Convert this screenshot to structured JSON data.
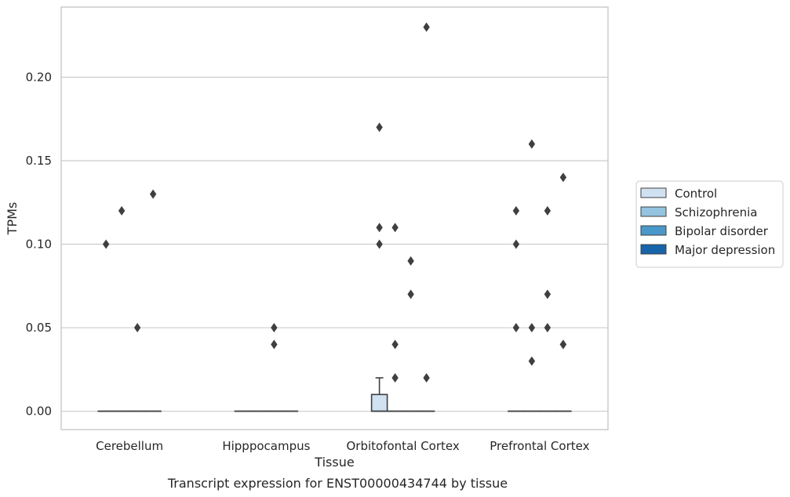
{
  "chart_data": {
    "type": "box",
    "xlabel": "Tissue",
    "ylabel": "TPMs",
    "caption": "Transcript expression for ENST00000434744 by tissue",
    "ylim": [
      -0.011,
      0.242
    ],
    "yticks": [
      0.0,
      0.05,
      0.1,
      0.15,
      0.2
    ],
    "ytick_labels": [
      "0.00",
      "0.05",
      "0.10",
      "0.15",
      "0.20"
    ],
    "grid": "horizontal",
    "legend_position": "right",
    "categories": [
      "Cerebellum",
      "Hipppocampus",
      "Orbitofontal Cortex",
      "Prefrontal Cortex"
    ],
    "series": [
      {
        "name": "Control",
        "color": "#d0e1f2",
        "boxes": [
          {
            "q1": 0,
            "median": 0,
            "q3": 0,
            "whislo": 0,
            "whishi": 0,
            "fliers": [
              0.1
            ]
          },
          {
            "q1": 0,
            "median": 0,
            "q3": 0,
            "whislo": 0,
            "whishi": 0,
            "fliers": []
          },
          {
            "q1": 0,
            "median": 0,
            "q3": 0.01,
            "whislo": 0,
            "whishi": 0.02,
            "fliers": [
              0.1,
              0.11,
              0.17
            ]
          },
          {
            "q1": 0,
            "median": 0,
            "q3": 0,
            "whislo": 0,
            "whishi": 0,
            "fliers": [
              0.05,
              0.1,
              0.12
            ]
          }
        ]
      },
      {
        "name": "Schizophrenia",
        "color": "#94c4df",
        "boxes": [
          {
            "q1": 0,
            "median": 0,
            "q3": 0,
            "whislo": 0,
            "whishi": 0,
            "fliers": [
              0.12
            ]
          },
          {
            "q1": 0,
            "median": 0,
            "q3": 0,
            "whislo": 0,
            "whishi": 0,
            "fliers": []
          },
          {
            "q1": 0,
            "median": 0,
            "q3": 0,
            "whislo": 0,
            "whishi": 0,
            "fliers": [
              0.04,
              0.02,
              0.11
            ]
          },
          {
            "q1": 0,
            "median": 0,
            "q3": 0,
            "whislo": 0,
            "whishi": 0,
            "fliers": [
              0.03,
              0.05,
              0.16
            ]
          }
        ]
      },
      {
        "name": "Bipolar disorder",
        "color": "#4a98c9",
        "boxes": [
          {
            "q1": 0,
            "median": 0,
            "q3": 0,
            "whislo": 0,
            "whishi": 0,
            "fliers": [
              0.05
            ]
          },
          {
            "q1": 0,
            "median": 0,
            "q3": 0,
            "whislo": 0,
            "whishi": 0,
            "fliers": [
              0.04,
              0.05
            ]
          },
          {
            "q1": 0,
            "median": 0,
            "q3": 0,
            "whislo": 0,
            "whishi": 0,
            "fliers": [
              0.07,
              0.09
            ]
          },
          {
            "q1": 0,
            "median": 0,
            "q3": 0,
            "whislo": 0,
            "whishi": 0,
            "fliers": [
              0.05,
              0.07,
              0.12
            ]
          }
        ]
      },
      {
        "name": "Major depression",
        "color": "#1764ab",
        "boxes": [
          {
            "q1": 0,
            "median": 0,
            "q3": 0,
            "whislo": 0,
            "whishi": 0,
            "fliers": [
              0.13
            ]
          },
          {
            "q1": 0,
            "median": 0,
            "q3": 0,
            "whislo": 0,
            "whishi": 0,
            "fliers": []
          },
          {
            "q1": 0,
            "median": 0,
            "q3": 0,
            "whislo": 0,
            "whishi": 0,
            "fliers": [
              0.02,
              0.23
            ]
          },
          {
            "q1": 0,
            "median": 0,
            "q3": 0,
            "whislo": 0,
            "whishi": 0,
            "fliers": [
              0.04,
              0.04,
              0.14
            ]
          }
        ]
      }
    ]
  }
}
